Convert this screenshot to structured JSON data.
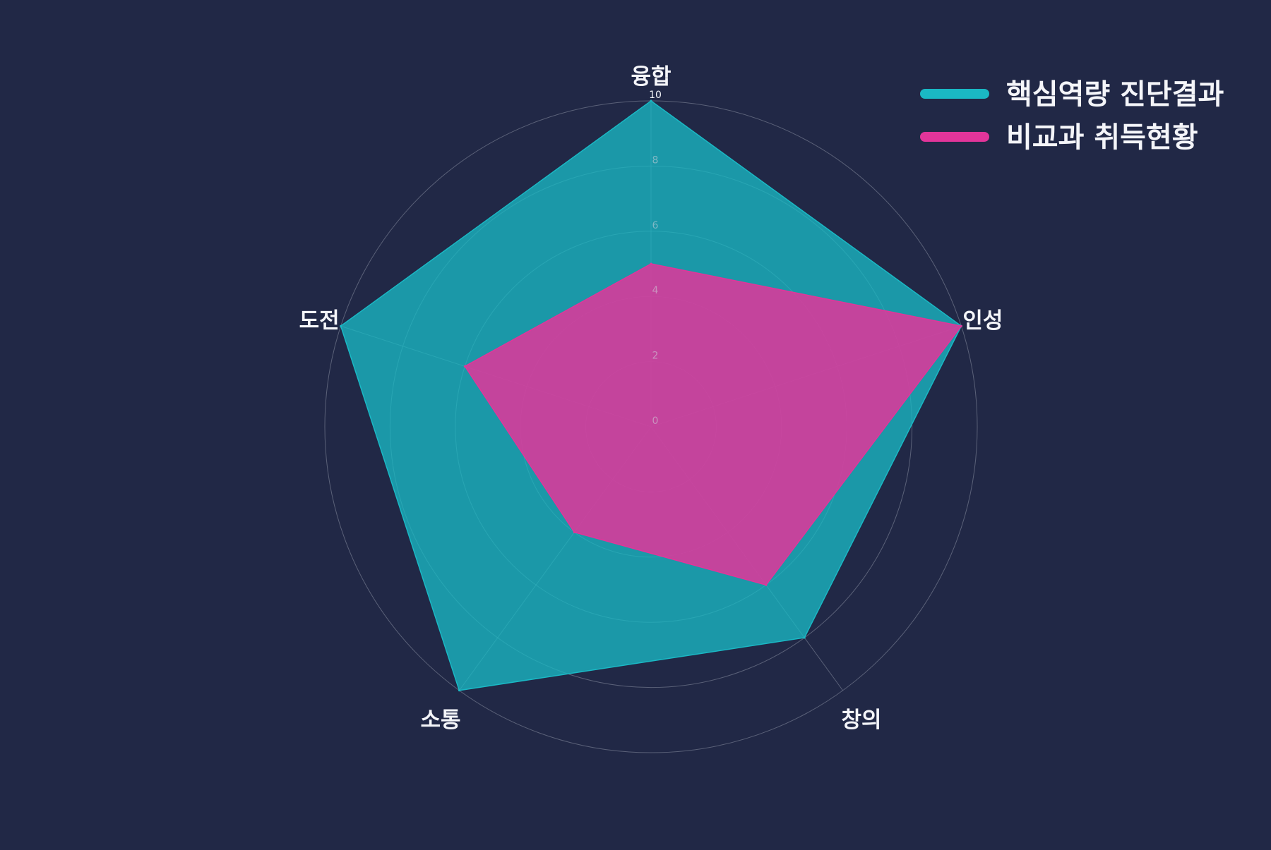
{
  "colors": {
    "background": "#212846",
    "grid": "#8a8fa3",
    "series_0": "#1ab8c4",
    "series_1": "#e2359a"
  },
  "chart_data": {
    "type": "radar",
    "categories": [
      "융합",
      "인성",
      "창의",
      "소통",
      "도전"
    ],
    "r_ticks": [
      0,
      2,
      4,
      6,
      8,
      10
    ],
    "rlim": [
      0,
      10
    ],
    "grid": true,
    "legend_position": "top-right",
    "series": [
      {
        "name": "핵심역량 진단결과",
        "values": [
          10,
          10,
          8,
          10,
          10
        ]
      },
      {
        "name": "비교과 취득현황",
        "values": [
          5,
          10,
          6,
          4,
          6
        ]
      }
    ]
  }
}
